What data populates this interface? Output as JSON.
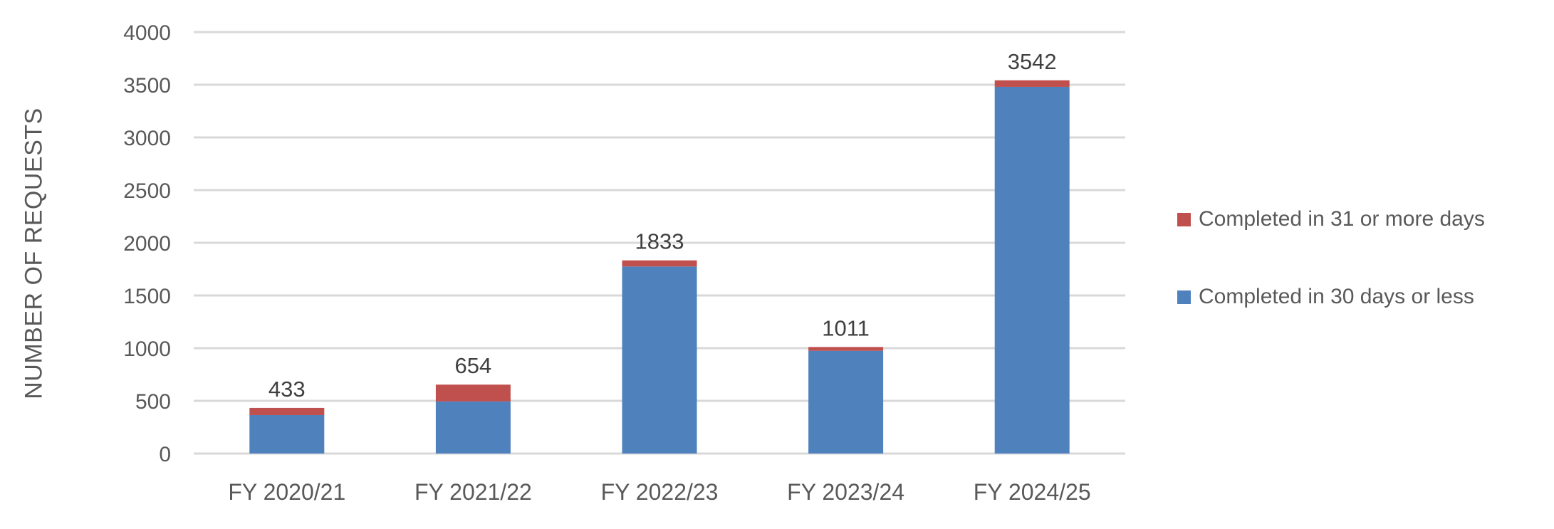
{
  "chart_data": {
    "type": "bar",
    "stacked": true,
    "title": "",
    "xlabel": "",
    "ylabel": "NUMBER OF REQUESTS",
    "ylim": [
      0,
      4000
    ],
    "yticks": [
      0,
      500,
      1000,
      1500,
      2000,
      2500,
      3000,
      3500,
      4000
    ],
    "grid": true,
    "legend_position": "right",
    "categories": [
      "FY 2020/21",
      "FY 2021/22",
      "FY 2022/23",
      "FY 2023/24",
      "FY 2024/25"
    ],
    "series": [
      {
        "name": "Completed in 30 days or less",
        "color": "#4F81BD",
        "values": [
          365,
          495,
          1775,
          975,
          3480
        ]
      },
      {
        "name": "Completed in 31 or more days",
        "color": "#C0504D",
        "values": [
          68,
          159,
          58,
          36,
          62
        ]
      }
    ],
    "totals": [
      433,
      654,
      1833,
      1011,
      3542
    ],
    "legend": [
      "Completed in 31 or more days",
      "Completed in 30 days or less"
    ]
  },
  "colors": {
    "grid": "#D9D9D9",
    "text": "#595959",
    "label": "#404040"
  }
}
